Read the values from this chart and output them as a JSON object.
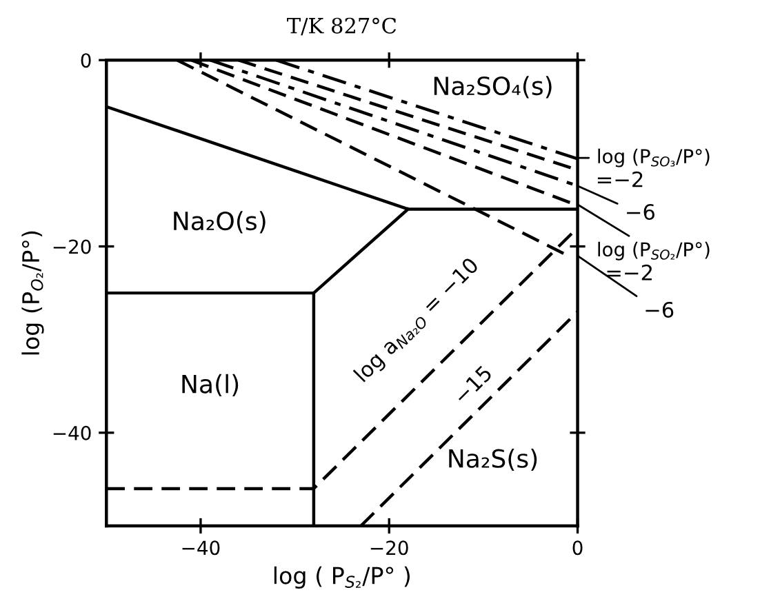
{
  "chart_data": {
    "type": "line",
    "title": "T/K 827°C",
    "xlabel": "log ( P$_{S₂}$/P° )",
    "ylabel": "log (P$_{O₂}$/P°)",
    "xlim": [
      -50,
      0
    ],
    "ylim": [
      -50,
      0
    ],
    "xticks": [
      -40,
      -20,
      0
    ],
    "yticks": [
      -40,
      -20,
      0
    ],
    "grid": false,
    "legend": false,
    "marker": "none",
    "series": [
      {
        "color": "#000000",
        "line_style": "solid",
        "x": [
          -50,
          -18,
          0
        ],
        "values": [
          -5,
          -16,
          -16
        ]
      },
      {
        "color": "#000000",
        "line_style": "solid",
        "x": [
          -50,
          -28,
          -18
        ],
        "values": [
          -25,
          -25,
          -16
        ]
      },
      {
        "color": "#000000",
        "line_style": "solid",
        "x": [
          -28,
          -28
        ],
        "values": [
          -25,
          -50
        ]
      },
      {
        "color": "#000000",
        "line_style": "dashed",
        "x": [
          -50,
          -28,
          0
        ],
        "values": [
          -46,
          -46,
          -18
        ]
      },
      {
        "color": "#000000",
        "line_style": "dashed",
        "x": [
          -23,
          0
        ],
        "values": [
          -50,
          -27
        ]
      },
      {
        "color": "#000000",
        "line_style": "dashdot",
        "x": [
          -32,
          0
        ],
        "values": [
          0,
          -10.6
        ]
      },
      {
        "color": "#000000",
        "line_style": "dashed",
        "x": [
          -36,
          0
        ],
        "values": [
          0,
          -11.8
        ]
      },
      {
        "color": "#000000",
        "line_style": "dashdot",
        "x": [
          -39,
          0
        ],
        "values": [
          0,
          -13.5
        ]
      },
      {
        "color": "#000000",
        "line_style": "dashed",
        "x": [
          -41,
          0
        ],
        "values": [
          0,
          -15.6
        ]
      },
      {
        "color": "#000000",
        "line_style": "dashed",
        "x": [
          -42.5,
          -1
        ],
        "values": [
          0,
          -21
        ]
      }
    ],
    "annotations": [
      "Na₂SO₄(s)",
      "Na₂O(s)",
      "Na(l)",
      "Na₂S(s)",
      "log a$_{Na₂O}$ = −10",
      "−15",
      "log (P$_{SO₃}$/P°)",
      "=−2",
      "−6",
      "log (P$_{SO₂}$/P°)",
      "=−2",
      "−6"
    ]
  }
}
